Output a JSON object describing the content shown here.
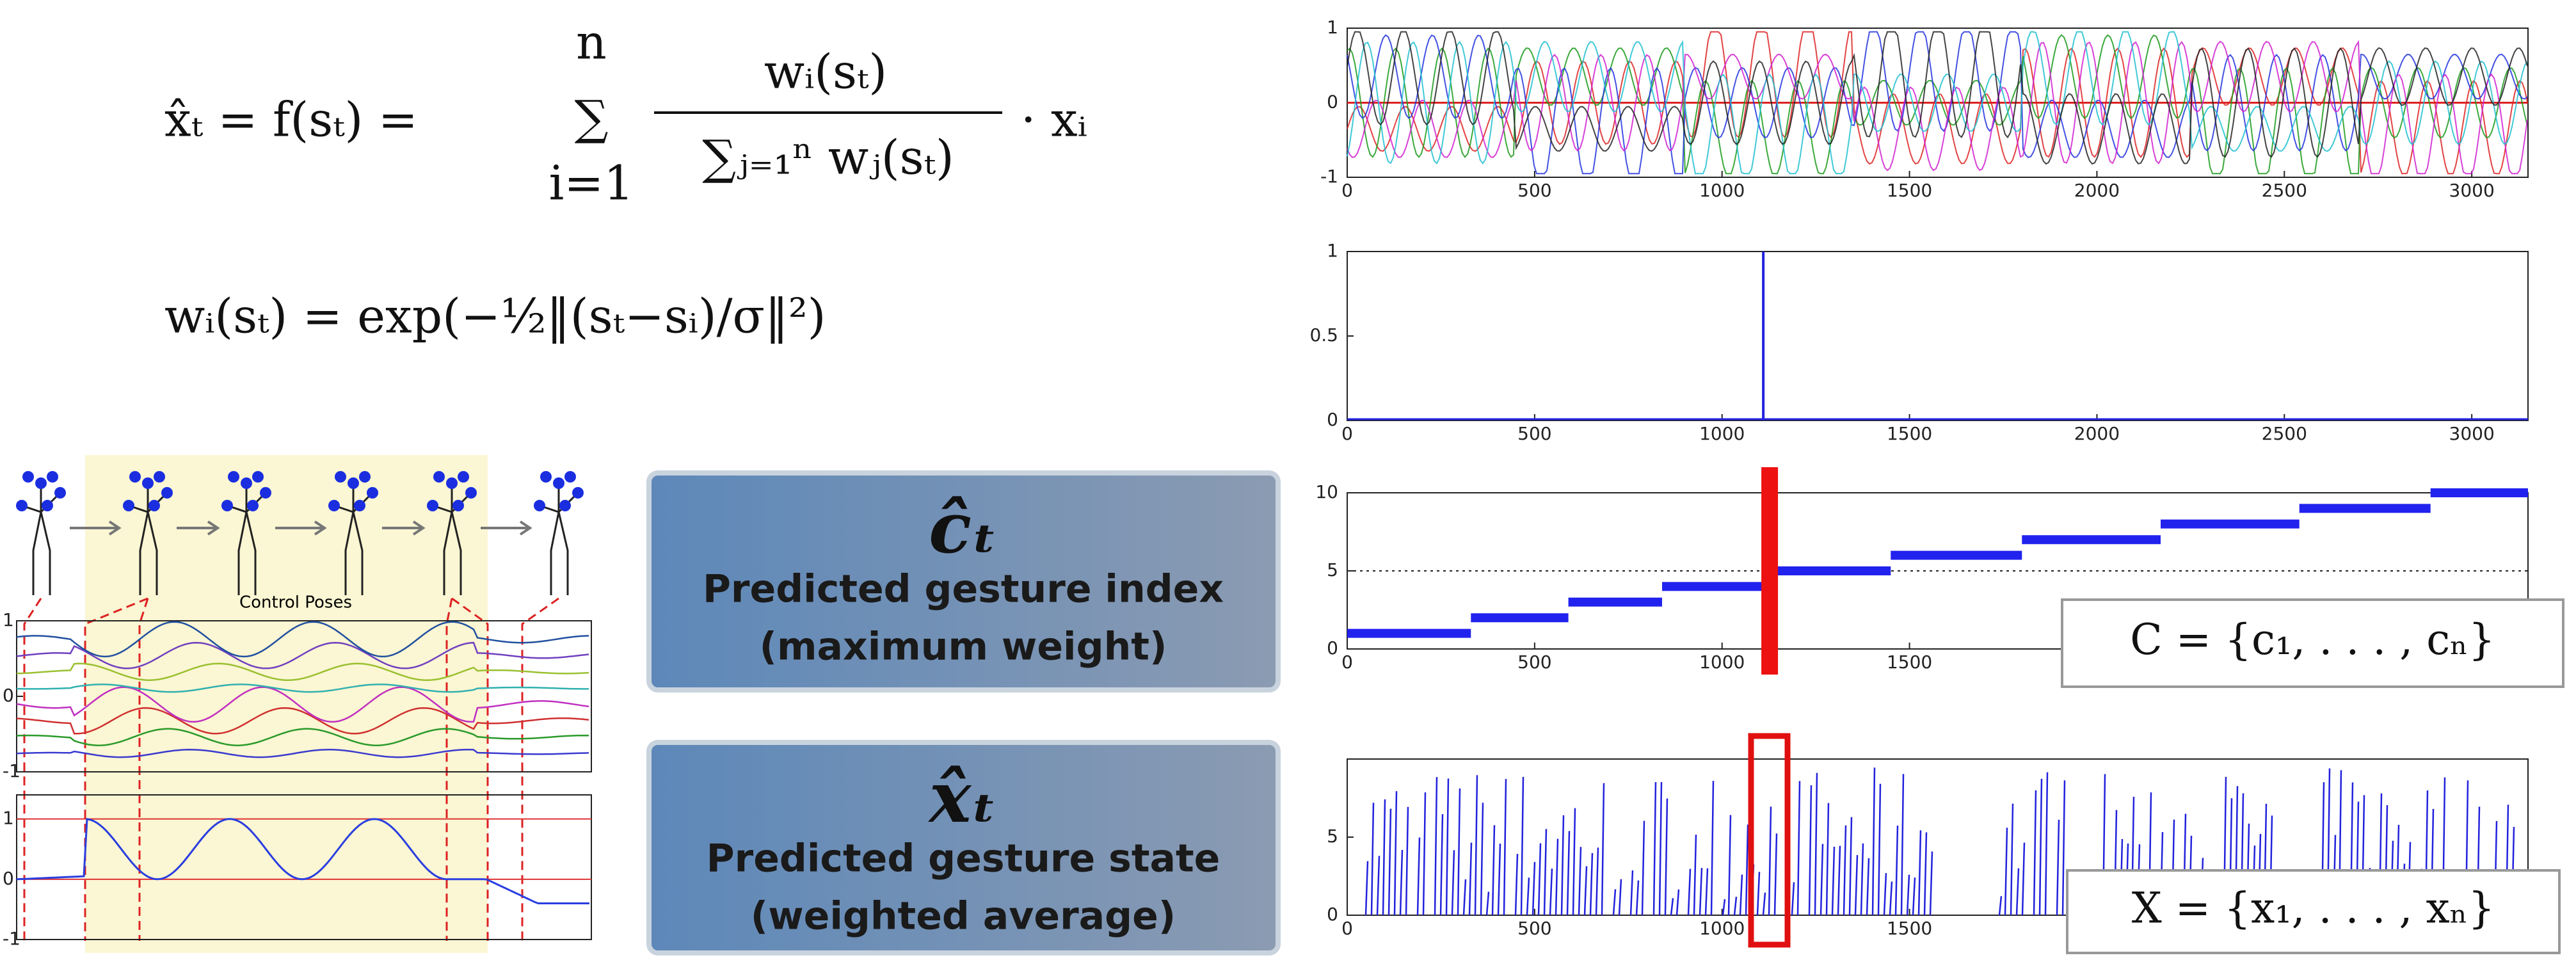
{
  "equations": {
    "eq1": {
      "lhs": "x̂ₜ = f(sₜ) =",
      "sum": "∑",
      "sum_top": "n",
      "sum_bottom": "i=1",
      "numerator": "wᵢ(sₜ)",
      "denominator": "∑ⱼ₌₁ⁿ wⱼ(sₜ)",
      "tail": "· xᵢ"
    },
    "eq2": "wᵢ(sₜ) = exp(−½‖(sₜ−sᵢ)/σ‖²)"
  },
  "control_poses": {
    "label": "Control Poses",
    "upper": {
      "ylim": [
        -1,
        1
      ],
      "yticks": [
        -1,
        0,
        1
      ]
    },
    "lower": {
      "ylim": [
        -1,
        1.4
      ],
      "yticks": [
        -1,
        0,
        1
      ]
    }
  },
  "boxes": [
    {
      "symbol": "ĉₜ",
      "line1": "Predicted gesture index",
      "line2": "(maximum weight)"
    },
    {
      "symbol": "x̂ₜ",
      "line1": "Predicted gesture state",
      "line2": "(weighted average)"
    }
  ],
  "plots": [
    {
      "type": "line",
      "xlim": [
        0,
        3150
      ],
      "ylim": [
        -1,
        1
      ],
      "xticks": [
        0,
        500,
        1000,
        1500,
        2000,
        2500,
        3000
      ],
      "yticks": [
        -1,
        0,
        1
      ]
    },
    {
      "type": "spike",
      "xlim": [
        0,
        3150
      ],
      "ylim": [
        0,
        1
      ],
      "xticks": [
        0,
        500,
        1000,
        1500,
        2000,
        2500,
        3000
      ],
      "yticks": [
        0,
        0.5,
        1
      ],
      "spike": {
        "x": 1110,
        "y": 1
      }
    },
    {
      "type": "step",
      "xlim": [
        0,
        3150
      ],
      "ylim": [
        0,
        10
      ],
      "xticks": [
        0,
        500,
        1000,
        1500
      ],
      "yticks": [
        0,
        5,
        10
      ],
      "steps": {
        "values": [
          1,
          2,
          3,
          4,
          5,
          6,
          7,
          8,
          9,
          10
        ],
        "edges": [
          0,
          330,
          590,
          840,
          1120,
          1450,
          1800,
          2170,
          2540,
          2890,
          3150
        ]
      },
      "marker_x": 1127
    },
    {
      "type": "impulses",
      "xlim": [
        0,
        3150
      ],
      "ylim": [
        0,
        10
      ],
      "xticks": [
        0,
        500,
        1000,
        1500
      ],
      "yticks": [
        0,
        5
      ]
    }
  ],
  "sets": [
    "C = {c₁, . . . , cₙ}",
    "X = {x₁, . . . , xₙ}"
  ]
}
